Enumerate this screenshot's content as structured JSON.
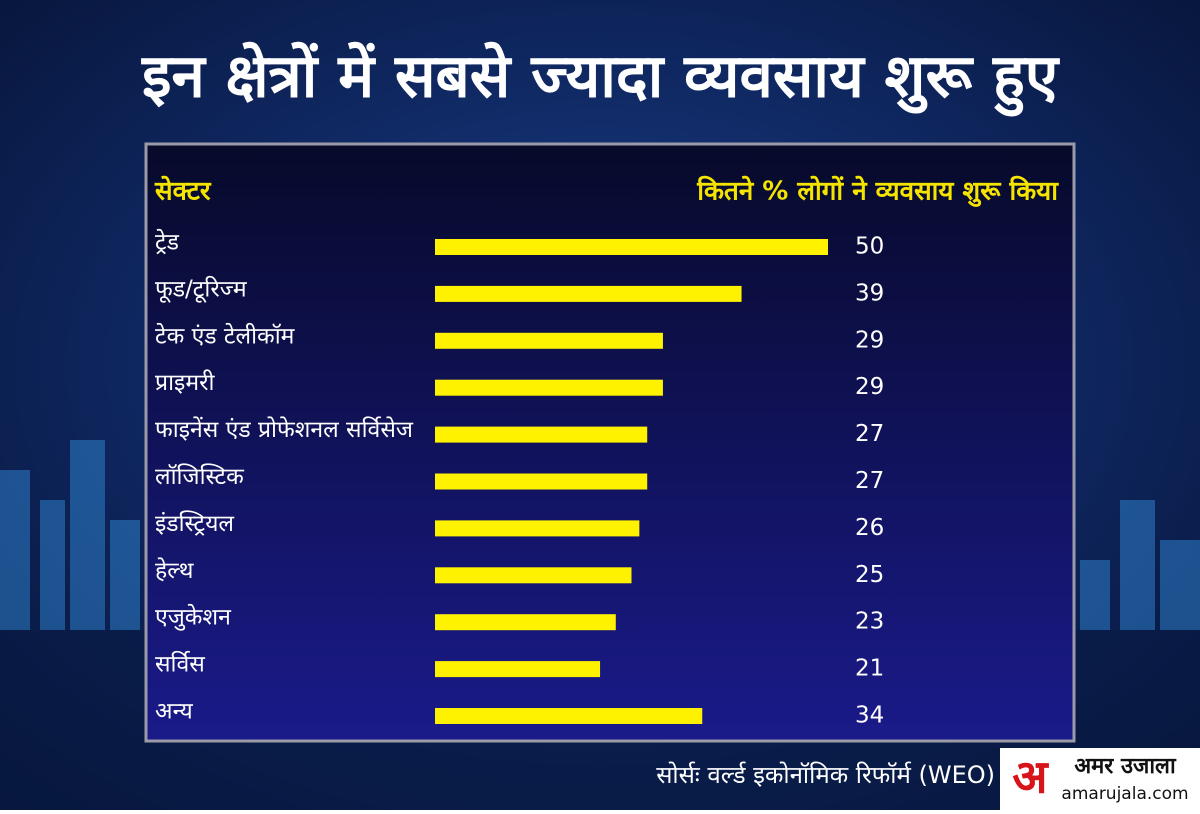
{
  "chart_data": {
    "type": "bar",
    "orientation": "horizontal",
    "title": "इन क्षेत्रों में सबसे ज्यादा व्यवसाय शुरू हुए",
    "category_header": "सेक्टर",
    "value_header": "कितने % लोगों ने व्यवसाय शुरू किया",
    "categories": [
      "ट्रेड",
      "फूड/टूरिज्म",
      "टेक एंड टेलीकॉम",
      "प्राइमरी",
      "फाइनेंस एंड प्रोफेशनल सर्विसेज",
      "लॉजिस्टिक",
      "इंडस्ट्रियल",
      "हेल्थ",
      "एजुकेशन",
      "सर्विस",
      "अन्य"
    ],
    "values": [
      50,
      39,
      29,
      29,
      27,
      27,
      26,
      25,
      23,
      21,
      34
    ],
    "color": "#fff200",
    "source": "सोर्सः वर्ल्ड इकोनॉमिक रिफॉर्म (WEO)"
  },
  "logo": {
    "mark": "अ",
    "name": "अमर उजाला",
    "site": "amarujala.com"
  }
}
